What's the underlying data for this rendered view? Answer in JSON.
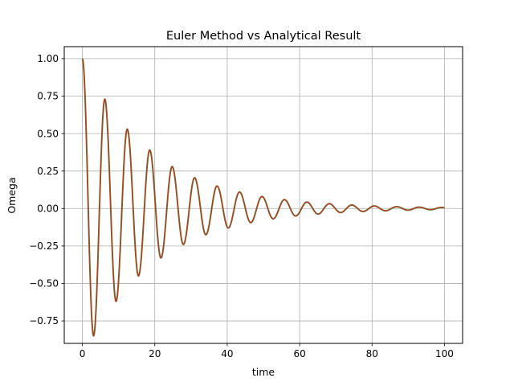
{
  "chart_data": {
    "type": "line",
    "title": "Euler Method vs Analytical Result",
    "xlabel": "time",
    "ylabel": "Omega",
    "xlim": [
      -5,
      105
    ],
    "ylim": [
      -0.9,
      1.08
    ],
    "xticks": [
      0,
      20,
      40,
      60,
      80,
      100
    ],
    "yticks": [
      -0.75,
      -0.5,
      -0.25,
      0.0,
      0.25,
      0.5,
      0.75,
      1.0
    ],
    "xtick_labels": [
      "0",
      "20",
      "40",
      "60",
      "80",
      "100"
    ],
    "ytick_labels": [
      "−0.75",
      "−0.50",
      "−0.25",
      "0.00",
      "0.25",
      "0.50",
      "0.75",
      "1.00"
    ],
    "grid": true,
    "legend": "none",
    "series": [
      {
        "color": "#2ca02c",
        "x": [
          0,
          3.1,
          6.2,
          9.3,
          12.4,
          15.5,
          18.6,
          21.7,
          24.8,
          27.9,
          31.0,
          34.1,
          37.2,
          40.3,
          43.4,
          46.5,
          49.6,
          52.7,
          55.8,
          58.9,
          62.0,
          65.1,
          68.2,
          71.3,
          74.4,
          77.5,
          80.6,
          83.7,
          86.8,
          89.9,
          93.0,
          96.1,
          99.2,
          100
        ],
        "y": [
          1.0,
          -0.85,
          0.73,
          -0.62,
          0.53,
          -0.45,
          0.39,
          -0.33,
          0.28,
          -0.24,
          0.205,
          -0.175,
          0.15,
          -0.13,
          0.11,
          -0.094,
          0.08,
          -0.069,
          0.059,
          -0.05,
          0.043,
          -0.037,
          0.032,
          -0.027,
          0.023,
          -0.02,
          0.017,
          -0.015,
          0.012,
          -0.011,
          0.009,
          -0.008,
          0.007,
          0.006
        ]
      },
      {
        "color": "#d62728",
        "x": [
          0,
          3.1,
          6.2,
          9.3,
          12.4,
          15.5,
          18.6,
          21.7,
          24.8,
          27.9,
          31.0,
          34.1,
          37.2,
          40.3,
          43.4,
          46.5,
          49.6,
          52.7,
          55.8,
          58.9,
          62.0,
          65.1,
          68.2,
          71.3,
          74.4,
          77.5,
          80.6,
          83.7,
          86.8,
          89.9,
          93.0,
          96.1,
          99.2,
          100
        ],
        "y": [
          1.0,
          -0.85,
          0.73,
          -0.62,
          0.53,
          -0.45,
          0.39,
          -0.33,
          0.28,
          -0.24,
          0.205,
          -0.175,
          0.15,
          -0.13,
          0.11,
          -0.094,
          0.08,
          -0.069,
          0.059,
          -0.05,
          0.043,
          -0.037,
          0.032,
          -0.027,
          0.023,
          -0.02,
          0.017,
          -0.015,
          0.012,
          -0.011,
          0.009,
          -0.008,
          0.007,
          0.006
        ]
      }
    ]
  }
}
